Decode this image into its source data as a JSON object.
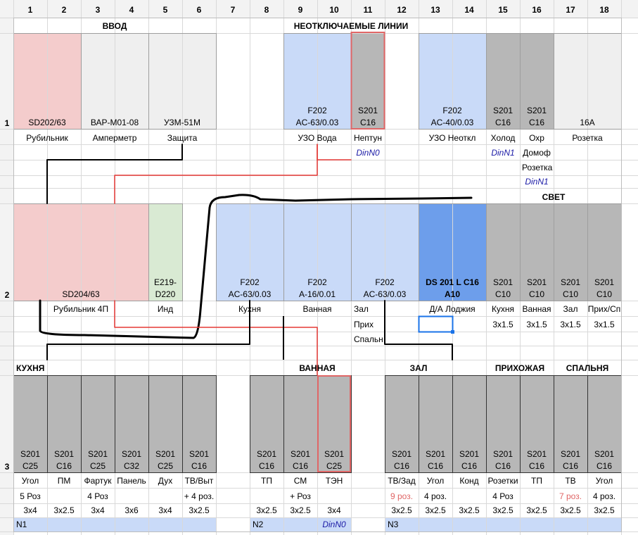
{
  "columns": [
    "1",
    "2",
    "3",
    "4",
    "5",
    "6",
    "7",
    "8",
    "9",
    "10",
    "11",
    "12",
    "13",
    "14",
    "15",
    "16",
    "17",
    "18"
  ],
  "rows": [
    "1",
    "2",
    "3"
  ],
  "colors": {
    "pink": "#f4cccc",
    "light_gray": "#efefef",
    "light_blue": "#c9daf8",
    "blue": "#6d9eeb",
    "green": "#d9ead3",
    "dark_gray": "#b7b7b7",
    "red": "#e06666",
    "wire_red": "#e53935",
    "link_blue": "#1a1aa6",
    "n_row": "#c9daf8"
  },
  "headers": {
    "vvod": "ВВОД",
    "neotkl": "НЕОТКЛЮЧАЕМЫЕ ЛИНИИ",
    "svet": "СВЕТ",
    "kuhnya": "КУХНЯ",
    "vannaya": "ВАННАЯ",
    "zal": "ЗАЛ",
    "prihozhaya": "ПРИХОЖАЯ",
    "spalnya": "СПАЛЬНЯ"
  },
  "row1": {
    "modules": [
      {
        "l1": "SD202/63",
        "l2": "",
        "label": "Рубильник"
      },
      {
        "l1": "ВАР-М01-08",
        "l2": "",
        "label": "Амперметр"
      },
      {
        "l1": "УЗМ-51М",
        "l2": "",
        "label": "Защита"
      },
      {
        "l1": "F202",
        "l2": "AC-63/0.03",
        "label": "УЗО Вода"
      },
      {
        "l1": "S201",
        "l2": "C16",
        "label": "Нептун"
      },
      {
        "l1": "F202",
        "l2": "AC-40/0.03",
        "label": "УЗО Неоткл"
      },
      {
        "l1": "S201",
        "l2": "C16",
        "label": "Холод"
      },
      {
        "l1": "S201",
        "l2": "C16",
        "label": "Охр"
      },
      {
        "l1": "16А",
        "l2": "",
        "label": "Розетка"
      }
    ],
    "extra": {
      "dinn0": "DinN0",
      "dinn1_a": "DinN1",
      "domof": "Домоф",
      "rozetka": "Розетка",
      "dinn1_b": "DinN1"
    }
  },
  "row2": {
    "modules": [
      {
        "l1": "",
        "l2": "SD204/63",
        "label": "Рубильник 4П"
      },
      {
        "l1": "E219-",
        "l2": "D220",
        "label": "Инд"
      },
      {
        "l1": "F202",
        "l2": "AC-63/0.03",
        "label": "Кухня"
      },
      {
        "l1": "F202",
        "l2": "A-16/0.01",
        "label": "Ванная"
      },
      {
        "l1": "F202",
        "l2": "AC-63/0.03",
        "label": "Зал"
      },
      {
        "l1": "DS 201 L C16",
        "l2": "A10",
        "label": "Д/А Лоджия"
      },
      {
        "l1": "S201",
        "l2": "C10",
        "label": "Кухня",
        "sub": "3x1.5"
      },
      {
        "l1": "S201",
        "l2": "C10",
        "label": "Ванная",
        "sub": "3x1.5"
      },
      {
        "l1": "S201",
        "l2": "C10",
        "label": "Зал",
        "sub": "3x1.5"
      },
      {
        "l1": "S201",
        "l2": "C10",
        "label": "Прих/Сп",
        "sub": "3x1.5"
      }
    ],
    "extra": {
      "prih": "Прих",
      "spalnya": "Спальн"
    }
  },
  "row3": {
    "modules": [
      {
        "l1": "S201",
        "l2": "C25",
        "label": "Угол",
        "note": "5 Роз",
        "cable": "3x4"
      },
      {
        "l1": "S201",
        "l2": "C16",
        "label": "ПМ",
        "note": "",
        "cable": "3x2.5"
      },
      {
        "l1": "S201",
        "l2": "C25",
        "label": "Фартук",
        "note": "4 Роз",
        "cable": "3x4"
      },
      {
        "l1": "S201",
        "l2": "C32",
        "label": "Панель",
        "note": "",
        "cable": "3x6"
      },
      {
        "l1": "S201",
        "l2": "C25",
        "label": "Дух",
        "note": "",
        "cable": "3x4"
      },
      {
        "l1": "S201",
        "l2": "C16",
        "label": "ТВ/Выт",
        "note": "+ 4 роз.",
        "cable": "3x2.5"
      },
      {
        "l1": "S201",
        "l2": "C16",
        "label": "ТП",
        "note": "",
        "cable": "3x2.5"
      },
      {
        "l1": "S201",
        "l2": "C16",
        "label": "СМ",
        "note": "+ Роз",
        "cable": "3x2.5"
      },
      {
        "l1": "S201",
        "l2": "C25",
        "label": "ТЭН",
        "note": "",
        "cable": "3x4"
      },
      {
        "l1": "S201",
        "l2": "C16",
        "label": "ТВ/Зад",
        "note": "9 роз.",
        "cable": "3x2.5"
      },
      {
        "l1": "S201",
        "l2": "C16",
        "label": "Угол",
        "note": "4 роз.",
        "cable": "3x2.5"
      },
      {
        "l1": "S201",
        "l2": "C16",
        "label": "Конд",
        "note": "",
        "cable": "3x2.5"
      },
      {
        "l1": "S201",
        "l2": "C16",
        "label": "Розетки",
        "note": "4 Роз",
        "cable": "3x2.5"
      },
      {
        "l1": "S201",
        "l2": "C16",
        "label": "ТП",
        "note": "",
        "cable": "3x2.5"
      },
      {
        "l1": "S201",
        "l2": "C16",
        "label": "ТВ",
        "note": "7 роз.",
        "cable": "3x2.5"
      },
      {
        "l1": "S201",
        "l2": "C16",
        "label": "Угол",
        "note": "4 роз.",
        "cable": "3x2.5"
      }
    ]
  },
  "nrow": {
    "n1": "N1",
    "n2": "N2",
    "dinn0": "DinN0",
    "n3": "N3"
  }
}
